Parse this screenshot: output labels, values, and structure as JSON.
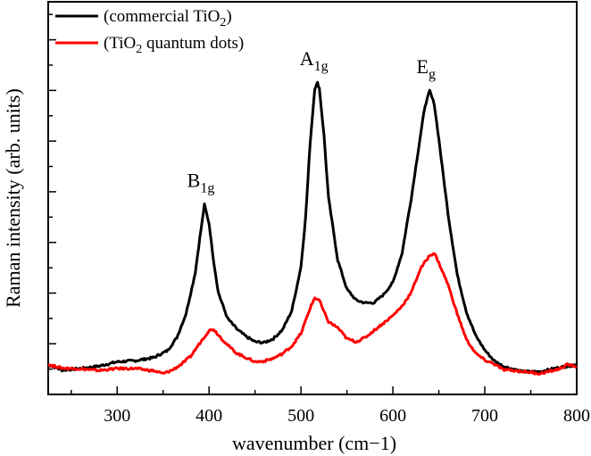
{
  "chart_data": {
    "type": "line",
    "title": "",
    "xlabel": "wavenumber (cm−1)",
    "ylabel": "Raman intensity (arb. units)",
    "xlim": [
      225,
      800
    ],
    "ylim": [
      0,
      100
    ],
    "x_ticks": [
      300,
      400,
      500,
      600,
      700,
      800
    ],
    "y_ticks_shown_as_labels": false,
    "grid": false,
    "legend_position": "top-left",
    "series": [
      {
        "name": "(commercial TiO2)",
        "color": "#000000",
        "points": [
          [
            225,
            7.6
          ],
          [
            240,
            6.2
          ],
          [
            260,
            6.6
          ],
          [
            280,
            7.2
          ],
          [
            300,
            8.3
          ],
          [
            320,
            8.6
          ],
          [
            340,
            9.4
          ],
          [
            355,
            11.2
          ],
          [
            365,
            14.5
          ],
          [
            375,
            20.6
          ],
          [
            385,
            31
          ],
          [
            390,
            40
          ],
          [
            395,
            48.3
          ],
          [
            400,
            43.5
          ],
          [
            405,
            34
          ],
          [
            410,
            26
          ],
          [
            420,
            19.4
          ],
          [
            430,
            16.7
          ],
          [
            440,
            14.8
          ],
          [
            450,
            13.4
          ],
          [
            460,
            13.2
          ],
          [
            470,
            14.2
          ],
          [
            480,
            16.5
          ],
          [
            490,
            21.3
          ],
          [
            500,
            32.5
          ],
          [
            505,
            45
          ],
          [
            510,
            64
          ],
          [
            515,
            78
          ],
          [
            518,
            79.3
          ],
          [
            520,
            78
          ],
          [
            525,
            66
          ],
          [
            530,
            50
          ],
          [
            540,
            34.2
          ],
          [
            550,
            26.8
          ],
          [
            560,
            24
          ],
          [
            570,
            23.3
          ],
          [
            580,
            23.4
          ],
          [
            590,
            25.5
          ],
          [
            600,
            28.5
          ],
          [
            610,
            36
          ],
          [
            620,
            50
          ],
          [
            630,
            66
          ],
          [
            635,
            73.5
          ],
          [
            640,
            77.3
          ],
          [
            645,
            74
          ],
          [
            650,
            65
          ],
          [
            660,
            46
          ],
          [
            670,
            30.5
          ],
          [
            680,
            21
          ],
          [
            690,
            15
          ],
          [
            700,
            11.3
          ],
          [
            710,
            8.6
          ],
          [
            720,
            7.2
          ],
          [
            740,
            5.8
          ],
          [
            760,
            5.8
          ],
          [
            780,
            6.8
          ],
          [
            800,
            7.6
          ]
        ]
      },
      {
        "name": "(TiO2 quantum dots)",
        "color": "#ff0000",
        "points": [
          [
            225,
            7.6
          ],
          [
            240,
            6.7
          ],
          [
            260,
            6.5
          ],
          [
            280,
            6.1
          ],
          [
            300,
            6.6
          ],
          [
            320,
            6.6
          ],
          [
            340,
            6.0
          ],
          [
            350,
            5.3
          ],
          [
            360,
            6.2
          ],
          [
            370,
            7.7
          ],
          [
            380,
            9.7
          ],
          [
            390,
            13.1
          ],
          [
            400,
            16.3
          ],
          [
            405,
            16.6
          ],
          [
            410,
            15.2
          ],
          [
            420,
            12.6
          ],
          [
            430,
            10.5
          ],
          [
            440,
            9.4
          ],
          [
            450,
            8.3
          ],
          [
            460,
            8.5
          ],
          [
            470,
            9.2
          ],
          [
            480,
            10.4
          ],
          [
            490,
            12.3
          ],
          [
            500,
            15.5
          ],
          [
            510,
            22
          ],
          [
            515,
            24.6
          ],
          [
            520,
            24
          ],
          [
            525,
            21
          ],
          [
            530,
            18.5
          ],
          [
            540,
            17
          ],
          [
            550,
            14.2
          ],
          [
            560,
            13.4
          ],
          [
            570,
            14.5
          ],
          [
            580,
            16.4
          ],
          [
            590,
            18.2
          ],
          [
            600,
            20.1
          ],
          [
            610,
            22.5
          ],
          [
            620,
            26
          ],
          [
            630,
            32
          ],
          [
            640,
            35.4
          ],
          [
            645,
            36
          ],
          [
            650,
            33.5
          ],
          [
            660,
            28
          ],
          [
            670,
            20.5
          ],
          [
            680,
            14
          ],
          [
            690,
            10.5
          ],
          [
            700,
            8.7
          ],
          [
            710,
            7.8
          ],
          [
            720,
            6.3
          ],
          [
            740,
            5.9
          ],
          [
            760,
            5.3
          ],
          [
            780,
            6.4
          ],
          [
            790,
            7.6
          ],
          [
            800,
            7.1
          ]
        ]
      }
    ],
    "annotations": [
      {
        "text": "B",
        "sub": "1g",
        "x": 395,
        "y": 48.3
      },
      {
        "text": "A",
        "sub": "1g",
        "x": 518,
        "y": 79.3
      },
      {
        "text": "E",
        "sub": "g",
        "x": 640,
        "y": 77.3
      }
    ]
  }
}
